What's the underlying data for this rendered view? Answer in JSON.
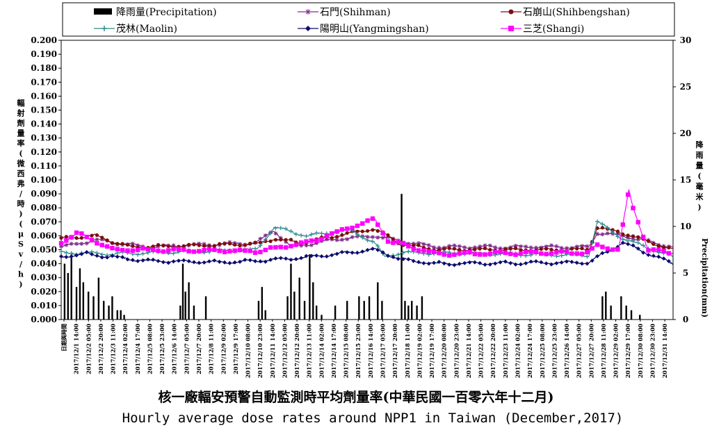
{
  "chart_data": {
    "type": "line",
    "title": "核一廠輻安預警自動監測時平均劑量率(中華民國一百零六年十二月)",
    "subtitle": "Hourly average dose rates around NPP1 in Taiwan (December,2017)",
    "ylabel_left": "輻射劑量率(微西弗/時)(μSv/h)",
    "ylabel_right": "降雨量(毫米)",
    "ylabel_right_en": "Precipitation(mm)",
    "ylim_left": [
      0,
      0.2
    ],
    "ylim_right": [
      0,
      30
    ],
    "left_ticks": [
      "0.000",
      "0.010",
      "0.020",
      "0.030",
      "0.040",
      "0.050",
      "0.060",
      "0.070",
      "0.080",
      "0.090",
      "0.100",
      "0.110",
      "0.120",
      "0.130",
      "0.140",
      "0.150",
      "0.160",
      "0.170",
      "0.180",
      "0.190",
      "0.200"
    ],
    "right_ticks": [
      "0",
      "5",
      "10",
      "15",
      "20",
      "25",
      "30"
    ],
    "x_first_label": "日期與時間",
    "x_tick_labels": [
      "2017/12/1 14:00",
      "2017/12/2 05:00",
      "2017/12/2 20:00",
      "2017/12/3 11:00",
      "2017/12/4 02:00",
      "2017/12/4 17:00",
      "2017/12/5 08:00",
      "2017/12/5 23:00",
      "2017/12/6 14:00",
      "2017/12/7 05:00",
      "2017/12/7 20:00",
      "2017/12/8 11:00",
      "2017/12/9 02:00",
      "2017/12/9 17:00",
      "2017/12/10 08:00",
      "2017/12/10 23:00",
      "2017/12/11 14:00",
      "2017/12/12 05:00",
      "2017/12/12 20:00",
      "2017/12/13 11:00",
      "2017/12/14 02:00",
      "2017/12/14 17:00",
      "2017/12/15 08:00",
      "2017/12/15 23:00",
      "2017/12/16 14:00",
      "2017/12/17 05:00",
      "2017/12/17 20:00",
      "2017/12/18 11:00",
      "2017/12/19 02:00",
      "2017/12/19 17:00",
      "2017/12/20 08:00",
      "2017/12/20 23:00",
      "2017/12/21 14:00",
      "2017/12/22 05:00",
      "2017/12/22 20:00",
      "2017/12/23 11:00",
      "2017/12/24 02:00",
      "2017/12/24 17:00",
      "2017/12/25 08:00",
      "2017/12/25 23:00",
      "2017/12/26 14:00",
      "2017/12/27 05:00",
      "2017/12/27 20:00",
      "2017/12/28 11:00",
      "2017/12/29 02:00",
      "2017/12/29 17:00",
      "2017/12/30 08:00",
      "2017/12/30 23:00",
      "2017/12/31 14:00"
    ],
    "grid": false,
    "legend_position": "top",
    "series": [
      {
        "name": "降雨量(Precipitation)",
        "kind": "bar",
        "axis": "right",
        "color": "#000000",
        "points": [
          [
            4,
            6.0
          ],
          [
            8,
            5.0
          ],
          [
            12,
            7.0
          ],
          [
            18,
            3.5
          ],
          [
            22,
            5.5
          ],
          [
            26,
            4.0
          ],
          [
            32,
            3.0
          ],
          [
            38,
            2.5
          ],
          [
            44,
            4.5
          ],
          [
            50,
            2.0
          ],
          [
            56,
            1.5
          ],
          [
            60,
            2.5
          ],
          [
            66,
            1.0
          ],
          [
            70,
            1.0
          ],
          [
            74,
            0.5
          ],
          [
            140,
            1.5
          ],
          [
            143,
            6.0
          ],
          [
            146,
            3.0
          ],
          [
            150,
            4.0
          ],
          [
            156,
            1.5
          ],
          [
            170,
            2.5
          ],
          [
            232,
            2.0
          ],
          [
            236,
            3.5
          ],
          [
            240,
            1.0
          ],
          [
            266,
            2.5
          ],
          [
            270,
            6.0
          ],
          [
            274,
            3.0
          ],
          [
            280,
            4.5
          ],
          [
            286,
            2.0
          ],
          [
            292,
            7.0
          ],
          [
            296,
            4.0
          ],
          [
            300,
            1.5
          ],
          [
            306,
            0.5
          ],
          [
            322,
            1.5
          ],
          [
            336,
            2.0
          ],
          [
            350,
            2.5
          ],
          [
            356,
            2.0
          ],
          [
            362,
            2.5
          ],
          [
            372,
            4.0
          ],
          [
            377,
            2.0
          ],
          [
            400,
            13.5
          ],
          [
            404,
            2.0
          ],
          [
            408,
            1.5
          ],
          [
            412,
            2.0
          ],
          [
            418,
            1.5
          ],
          [
            424,
            2.5
          ],
          [
            636,
            2.5
          ],
          [
            640,
            3.0
          ],
          [
            646,
            1.5
          ],
          [
            658,
            2.5
          ],
          [
            664,
            1.5
          ],
          [
            670,
            1.0
          ],
          [
            680,
            0.5
          ]
        ]
      },
      {
        "name": "石門(Shihman)",
        "kind": "line",
        "axis": "left",
        "color": "#7e2a8c",
        "base": 0.051,
        "points": [
          [
            0,
            0.052
          ],
          [
            40,
            0.057
          ],
          [
            100,
            0.052
          ],
          [
            230,
            0.055
          ],
          [
            250,
            0.064
          ],
          [
            270,
            0.052
          ],
          [
            330,
            0.058
          ],
          [
            368,
            0.06
          ],
          [
            400,
            0.056
          ],
          [
            440,
            0.052
          ],
          [
            620,
            0.052
          ],
          [
            630,
            0.062
          ],
          [
            660,
            0.06
          ],
          [
            718,
            0.052
          ]
        ]
      },
      {
        "name": "石崩山(Shihbengshan)",
        "kind": "line",
        "axis": "left",
        "color": "#7b0f0f",
        "base": 0.05,
        "points": [
          [
            0,
            0.058
          ],
          [
            40,
            0.06
          ],
          [
            80,
            0.052
          ],
          [
            230,
            0.054
          ],
          [
            250,
            0.058
          ],
          [
            280,
            0.055
          ],
          [
            368,
            0.065
          ],
          [
            400,
            0.054
          ],
          [
            440,
            0.05
          ],
          [
            620,
            0.05
          ],
          [
            630,
            0.066
          ],
          [
            660,
            0.062
          ],
          [
            718,
            0.05
          ]
        ]
      },
      {
        "name": "茂林(Maolin)",
        "kind": "line",
        "axis": "left",
        "color": "#2e8b8b",
        "base": 0.047,
        "points": [
          [
            0,
            0.048
          ],
          [
            60,
            0.047
          ],
          [
            230,
            0.05
          ],
          [
            250,
            0.066
          ],
          [
            290,
            0.06
          ],
          [
            340,
            0.064
          ],
          [
            368,
            0.055
          ],
          [
            380,
            0.045
          ],
          [
            400,
            0.048
          ],
          [
            620,
            0.046
          ],
          [
            630,
            0.07
          ],
          [
            660,
            0.058
          ],
          [
            718,
            0.045
          ]
        ]
      },
      {
        "name": "陽明山(Yangmingshan)",
        "kind": "line",
        "axis": "left",
        "color": "#0c0c6e",
        "base": 0.041,
        "points": [
          [
            0,
            0.045
          ],
          [
            30,
            0.047
          ],
          [
            100,
            0.042
          ],
          [
            200,
            0.041
          ],
          [
            280,
            0.044
          ],
          [
            368,
            0.05
          ],
          [
            400,
            0.043
          ],
          [
            440,
            0.04
          ],
          [
            620,
            0.041
          ],
          [
            660,
            0.055
          ],
          [
            718,
            0.04
          ]
        ]
      },
      {
        "name": "三芝(Shangi)",
        "kind": "line",
        "axis": "left",
        "color": "#ff00ff",
        "base": 0.046,
        "points": [
          [
            0,
            0.055
          ],
          [
            20,
            0.062
          ],
          [
            60,
            0.05
          ],
          [
            230,
            0.049
          ],
          [
            290,
            0.055
          ],
          [
            368,
            0.072
          ],
          [
            385,
            0.056
          ],
          [
            400,
            0.054
          ],
          [
            440,
            0.047
          ],
          [
            620,
            0.048
          ],
          [
            630,
            0.053
          ],
          [
            655,
            0.05
          ],
          [
            667,
            0.092
          ],
          [
            672,
            0.08
          ],
          [
            690,
            0.05
          ],
          [
            718,
            0.048
          ]
        ]
      }
    ],
    "x_count": 720
  }
}
